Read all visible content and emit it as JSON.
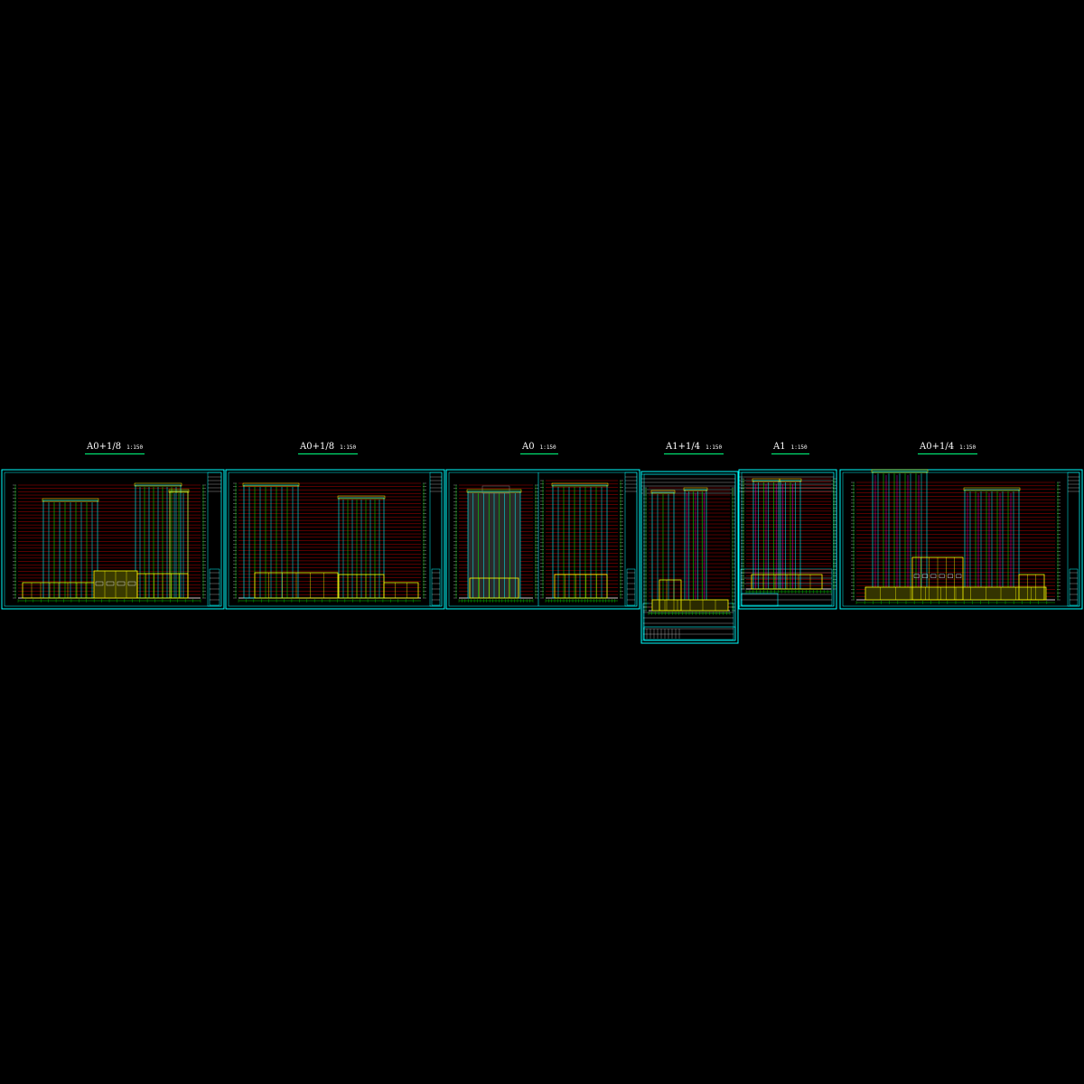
{
  "drawing": {
    "background": "#000000",
    "colors": {
      "frame": "#00ffff",
      "level_line": "#ff0000",
      "building": "#00ffff",
      "outline": "#ffff00",
      "grid_axis": "#00ff00",
      "accent": "#ff00ff",
      "mass": "#7f7f7f",
      "label": "#ffffff"
    }
  },
  "sheets": [
    {
      "id": "sheet-1",
      "format": "A0+1/8",
      "scale": "1:150"
    },
    {
      "id": "sheet-2",
      "format": "A0+1/8",
      "scale": "1:150"
    },
    {
      "id": "sheet-3",
      "format": "A0",
      "scale": "1:150"
    },
    {
      "id": "sheet-4",
      "format": "A1+1/4",
      "scale": "1:150"
    },
    {
      "id": "sheet-5",
      "format": "A1",
      "scale": "1:150"
    },
    {
      "id": "sheet-6",
      "format": "A0+1/4",
      "scale": "1:150"
    }
  ]
}
